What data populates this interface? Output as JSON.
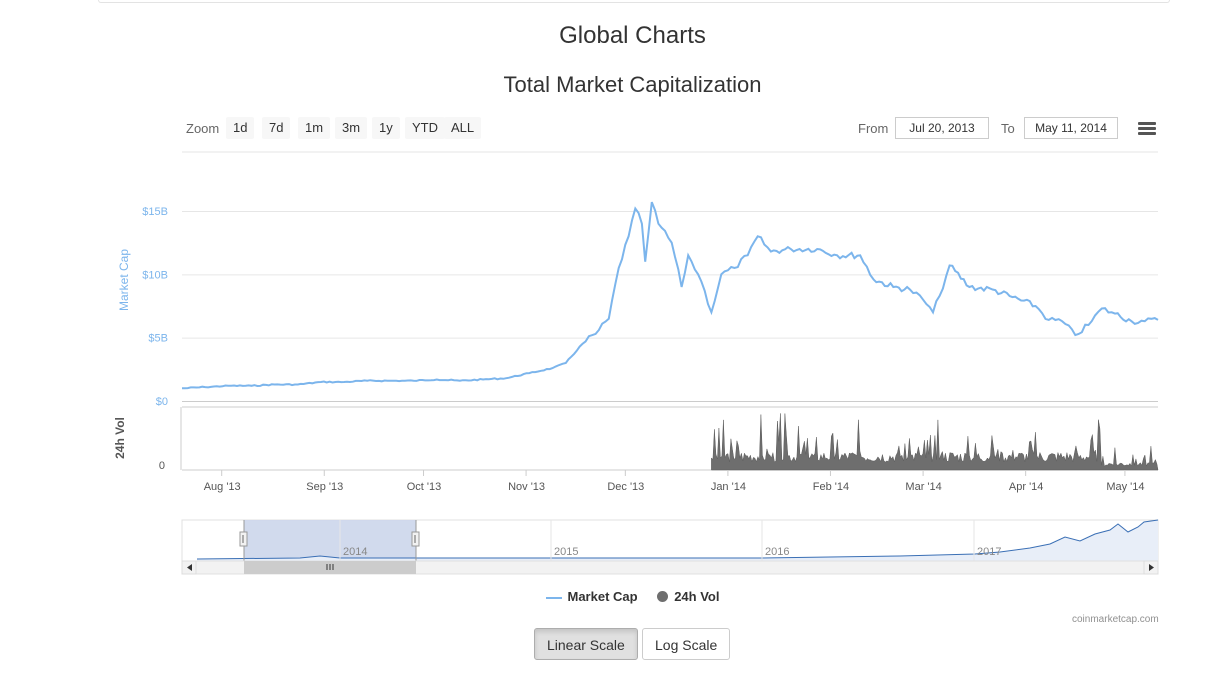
{
  "page": {
    "title": "Global Charts"
  },
  "chart_title": "Total Market Capitalization",
  "zoom": {
    "label": "Zoom",
    "buttons": [
      "1d",
      "7d",
      "1m",
      "3m",
      "1y",
      "YTD",
      "ALL"
    ]
  },
  "range": {
    "from_label": "From",
    "from_value": "Jul 20, 2013",
    "to_label": "To",
    "to_value": "May 11, 2014"
  },
  "colors": {
    "market_cap": "#7cb5ec",
    "volume": "#6e6e6e",
    "navigator_fill": "#ccd6eb"
  },
  "chart_data": {
    "type": "line",
    "title": "Total Market Capitalization",
    "y_axis": {
      "label": "Market Cap",
      "ticks": [
        "$0",
        "$5B",
        "$10B",
        "$15B"
      ],
      "range": [
        0,
        15
      ],
      "unit": "billion USD"
    },
    "volume_axis": {
      "label": "24h Vol",
      "ticks": [
        "0"
      ]
    },
    "x_ticks": [
      "Aug '13",
      "Sep '13",
      "Oct '13",
      "Nov '13",
      "Dec '13",
      "Jan '14",
      "Feb '14",
      "Mar '14",
      "Apr '14",
      "May '14"
    ],
    "series": [
      {
        "name": "Market Cap",
        "points": [
          [
            "2013-07-20",
            1.0
          ],
          [
            "2013-07-27",
            1.1
          ],
          [
            "2013-08-03",
            1.2
          ],
          [
            "2013-08-10",
            1.2
          ],
          [
            "2013-08-17",
            1.3
          ],
          [
            "2013-08-24",
            1.3
          ],
          [
            "2013-08-31",
            1.5
          ],
          [
            "2013-09-07",
            1.5
          ],
          [
            "2013-09-14",
            1.6
          ],
          [
            "2013-09-21",
            1.6
          ],
          [
            "2013-09-28",
            1.6
          ],
          [
            "2013-10-05",
            1.7
          ],
          [
            "2013-10-12",
            1.6
          ],
          [
            "2013-10-19",
            1.7
          ],
          [
            "2013-10-26",
            1.8
          ],
          [
            "2013-11-02",
            2.2
          ],
          [
            "2013-11-09",
            2.6
          ],
          [
            "2013-11-13",
            3.0
          ],
          [
            "2013-11-18",
            4.5
          ],
          [
            "2013-11-22",
            5.3
          ],
          [
            "2013-11-26",
            6.5
          ],
          [
            "2013-11-29",
            10.5
          ],
          [
            "2013-12-02",
            13.0
          ],
          [
            "2013-12-04",
            15.2
          ],
          [
            "2013-12-06",
            14.0
          ],
          [
            "2013-12-07",
            11.0
          ],
          [
            "2013-12-09",
            15.7
          ],
          [
            "2013-12-11",
            14.0
          ],
          [
            "2013-12-15",
            12.5
          ],
          [
            "2013-12-18",
            9.0
          ],
          [
            "2013-12-20",
            11.5
          ],
          [
            "2013-12-23",
            10.0
          ],
          [
            "2013-12-25",
            8.7
          ],
          [
            "2013-12-27",
            7.0
          ],
          [
            "2013-12-30",
            10.0
          ],
          [
            "2014-01-03",
            10.5
          ],
          [
            "2014-01-07",
            11.5
          ],
          [
            "2014-01-10",
            13.0
          ],
          [
            "2014-01-14",
            11.8
          ],
          [
            "2014-01-20",
            12.0
          ],
          [
            "2014-01-28",
            12.0
          ],
          [
            "2014-02-03",
            11.5
          ],
          [
            "2014-02-10",
            11.5
          ],
          [
            "2014-02-14",
            9.6
          ],
          [
            "2014-02-20",
            9.0
          ],
          [
            "2014-02-25",
            8.8
          ],
          [
            "2014-03-01",
            8.0
          ],
          [
            "2014-03-04",
            7.0
          ],
          [
            "2014-03-06",
            8.3
          ],
          [
            "2014-03-09",
            10.7
          ],
          [
            "2014-03-15",
            9.0
          ],
          [
            "2014-03-22",
            8.8
          ],
          [
            "2014-03-28",
            8.2
          ],
          [
            "2014-04-04",
            7.5
          ],
          [
            "2014-04-08",
            6.4
          ],
          [
            "2014-04-12",
            6.3
          ],
          [
            "2014-04-16",
            5.2
          ],
          [
            "2014-04-20",
            6.0
          ],
          [
            "2014-04-24",
            7.3
          ],
          [
            "2014-04-28",
            6.9
          ],
          [
            "2014-05-03",
            6.3
          ],
          [
            "2014-05-07",
            6.3
          ],
          [
            "2014-05-11",
            6.4
          ]
        ]
      },
      {
        "name": "24h Vol",
        "type": "area",
        "note_start": "2013-12-27"
      }
    ],
    "navigator_labels": [
      "2014",
      "2015",
      "2016",
      "2017"
    ]
  },
  "legend": {
    "items": [
      "Market Cap",
      "24h Vol"
    ]
  },
  "credit": "coinmarketcap.com",
  "scale_buttons": {
    "linear": "Linear Scale",
    "log": "Log Scale"
  }
}
